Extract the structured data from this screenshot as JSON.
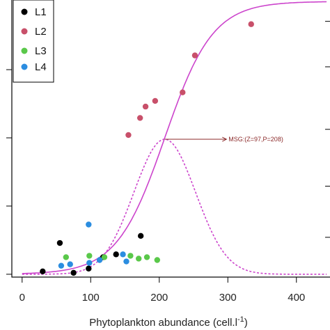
{
  "chart_data": {
    "type": "scatter",
    "xlabel_main": "Phytoplankton abundance (cell.l",
    "xlabel_sup": "-1",
    "xlabel_close": ")",
    "xlim": [
      -15,
      450
    ],
    "ylim": [
      -0.01,
      0.97
    ],
    "x_ticks": [
      0,
      100,
      200,
      300,
      400
    ],
    "legend_position": "top-left",
    "series": [
      {
        "name": "L1",
        "color": "#000000",
        "points": [
          [
            30,
            0.01
          ],
          [
            55,
            0.11
          ],
          [
            75,
            0.005
          ],
          [
            97,
            0.02
          ],
          [
            118,
            0.06
          ],
          [
            137,
            0.07
          ],
          [
            173,
            0.135
          ]
        ]
      },
      {
        "name": "L2",
        "color": "#c8506a",
        "points": [
          [
            155,
            0.49
          ],
          [
            172,
            0.55
          ],
          [
            180,
            0.59
          ],
          [
            194,
            0.61
          ],
          [
            234,
            0.64
          ],
          [
            252,
            0.77
          ],
          [
            334,
            0.88
          ]
        ]
      },
      {
        "name": "L3",
        "color": "#5ac84a",
        "points": [
          [
            64,
            0.06
          ],
          [
            98,
            0.065
          ],
          [
            120,
            0.06
          ],
          [
            158,
            0.065
          ],
          [
            170,
            0.055
          ],
          [
            182,
            0.06
          ],
          [
            197,
            0.05
          ]
        ]
      },
      {
        "name": "L4",
        "color": "#2b8de0",
        "points": [
          [
            57,
            0.03
          ],
          [
            70,
            0.035
          ],
          [
            97,
            0.175
          ],
          [
            98,
            0.04
          ],
          [
            113,
            0.05
          ],
          [
            147,
            0.07
          ],
          [
            152,
            0.045
          ]
        ]
      }
    ],
    "curves": [
      {
        "kind": "sigmoid",
        "style": "solid",
        "color": "#cc44cc",
        "center": 208,
        "width": 35,
        "max": 0.96
      },
      {
        "kind": "bell",
        "style": "dotted",
        "color": "#cc44cc",
        "center": 208,
        "sd": 45,
        "max": 0.475
      }
    ],
    "annotation": {
      "text": "MSG:(Z=97,P=208)",
      "x_from": 208,
      "x_to": 298,
      "y": 0.475
    }
  }
}
